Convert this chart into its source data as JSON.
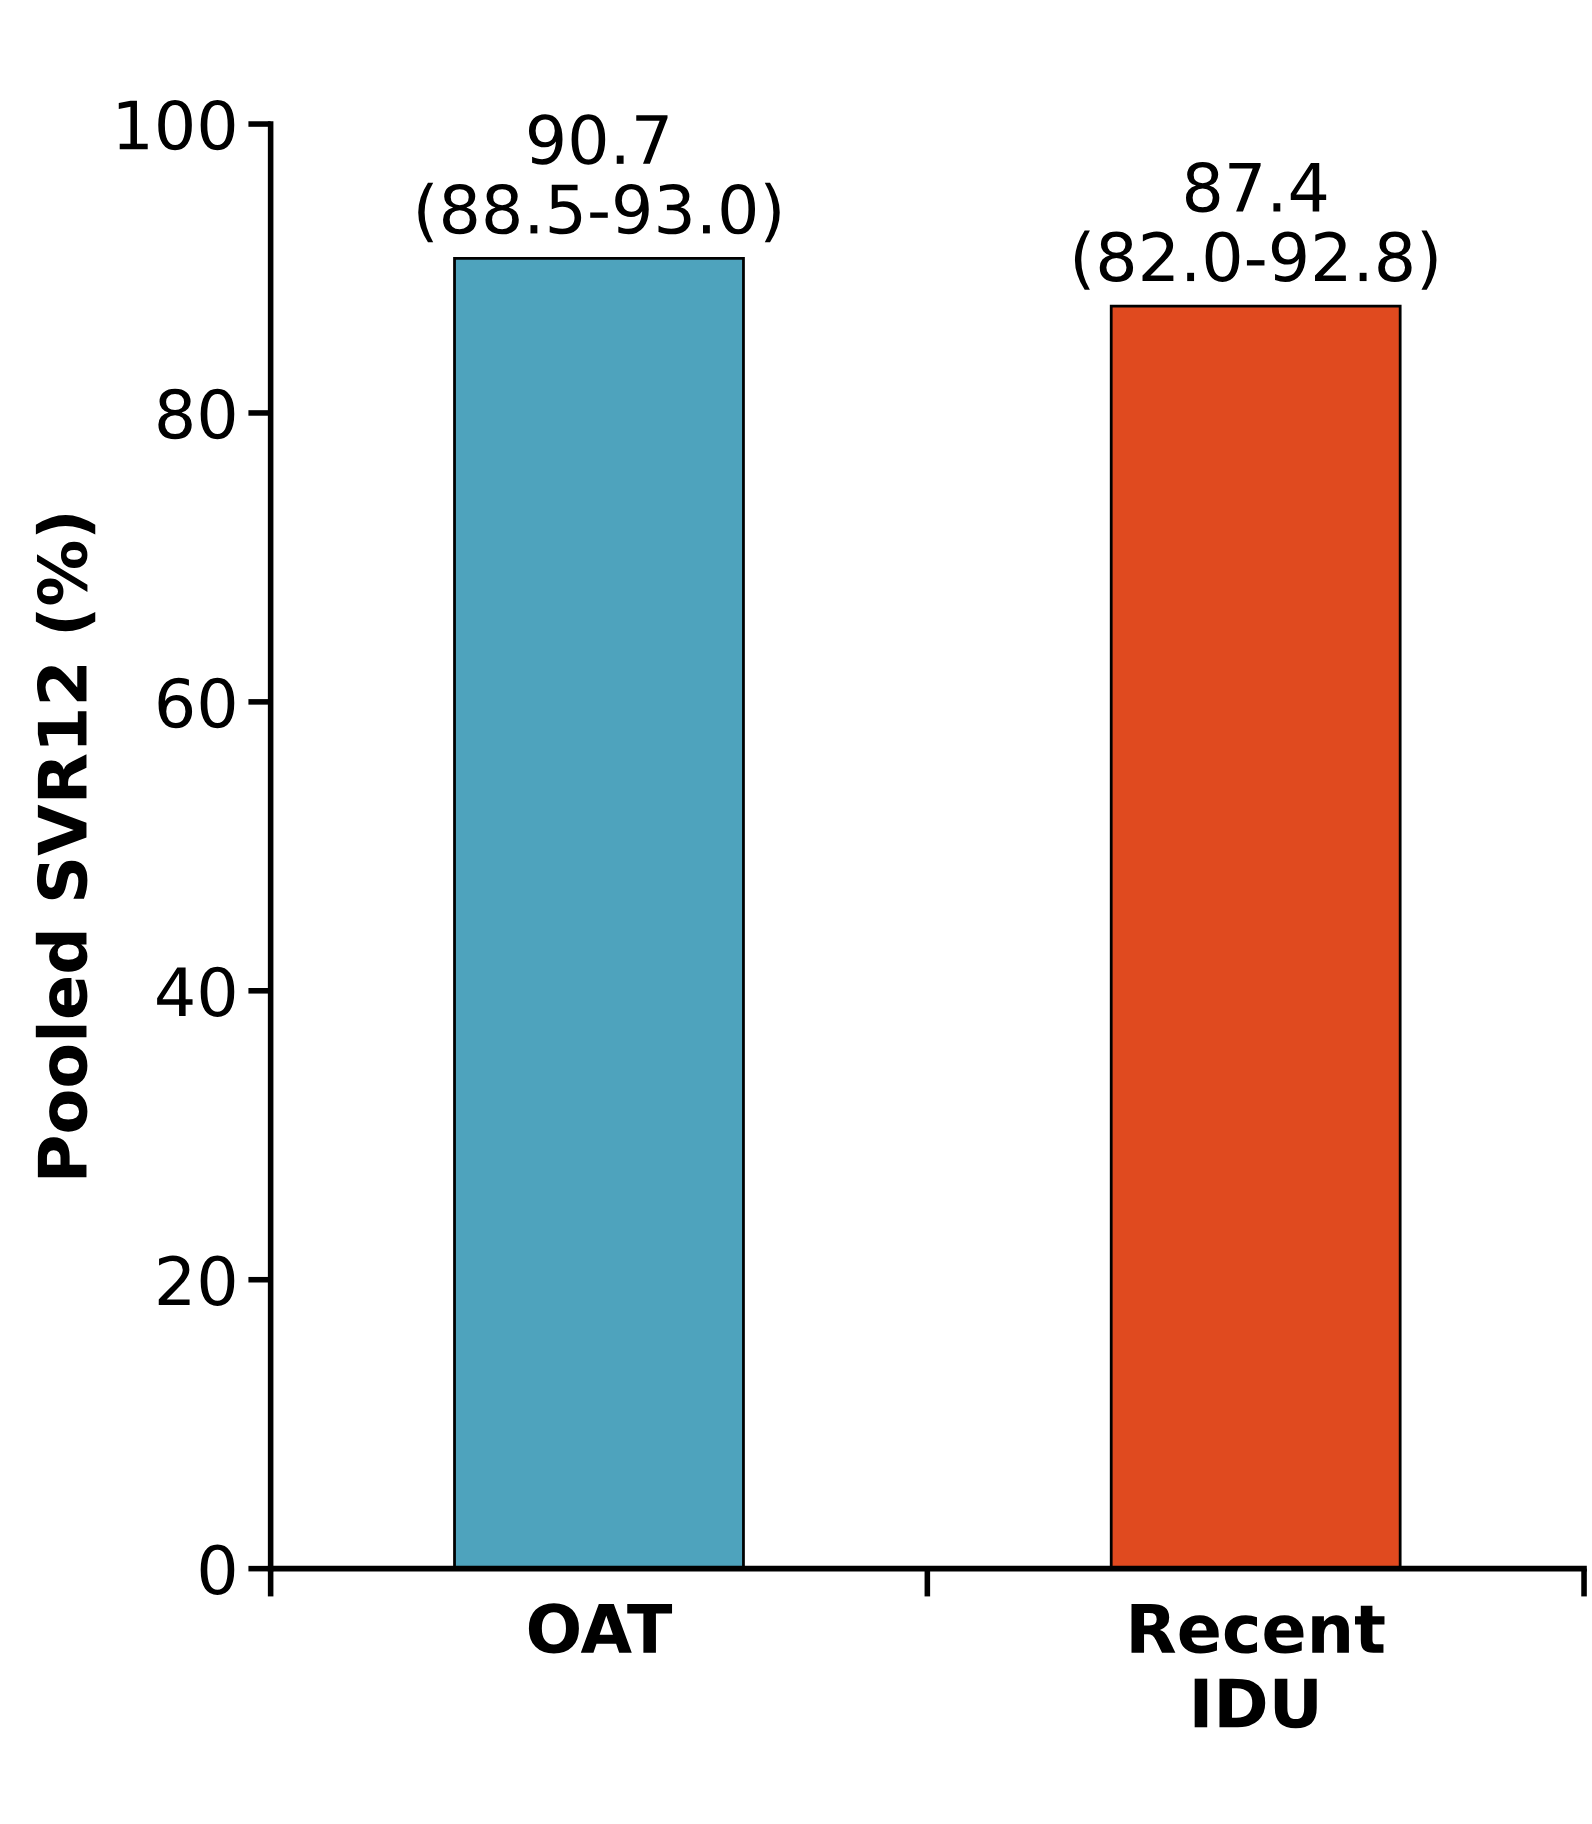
{
  "chart_data": {
    "type": "bar",
    "ylabel": "Pooled SVR12 (%)",
    "categories": [
      "OAT",
      "Recent\nIDU"
    ],
    "series": [
      {
        "color": null,
        "colors": [
          "#4ea3bd",
          "#e04a1f"
        ],
        "values": [
          90.7,
          87.4
        ],
        "value_labels": [
          "90.7\n(88.5-93.0)",
          "87.4\n(82.0-92.8)"
        ]
      }
    ],
    "ylim": [
      0,
      100
    ],
    "yticks": [
      0,
      20,
      40,
      60,
      80,
      100
    ],
    "grid": false
  }
}
